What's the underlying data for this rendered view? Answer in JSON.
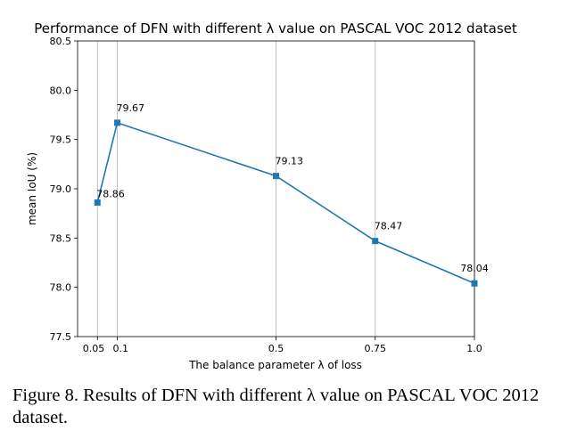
{
  "chart_data": {
    "type": "line",
    "title": "Performance of DFN with different λ value on PASCAL VOC 2012 dataset",
    "xlabel": "The balance parameter λ of loss",
    "ylabel": "mean IoU (%)",
    "xlim": [
      0.0,
      1.0
    ],
    "ylim": [
      77.5,
      80.5
    ],
    "x_ticks": [
      0.05,
      0.1,
      0.5,
      0.75,
      1.0
    ],
    "x_tick_labels": [
      "0.05",
      "0.1",
      "0.5",
      "0.75",
      "1.0"
    ],
    "y_ticks": [
      77.5,
      78.0,
      78.5,
      79.0,
      79.5,
      80.0,
      80.5
    ],
    "y_tick_labels": [
      "77.5",
      "78.0",
      "78.5",
      "79.0",
      "79.5",
      "80.0",
      "80.5"
    ],
    "grid": "x-only",
    "series": [
      {
        "color": "#1f77b4",
        "marker": "square",
        "x": [
          0.05,
          0.1,
          0.5,
          0.75,
          1.0
        ],
        "y": [
          78.86,
          79.67,
          79.13,
          78.47,
          78.04
        ],
        "labels": [
          "78.86",
          "79.67",
          "79.13",
          "78.47",
          "78.04"
        ]
      }
    ]
  },
  "caption": "Figure 8. Results of DFN with different λ value on PASCAL VOC 2012 dataset."
}
